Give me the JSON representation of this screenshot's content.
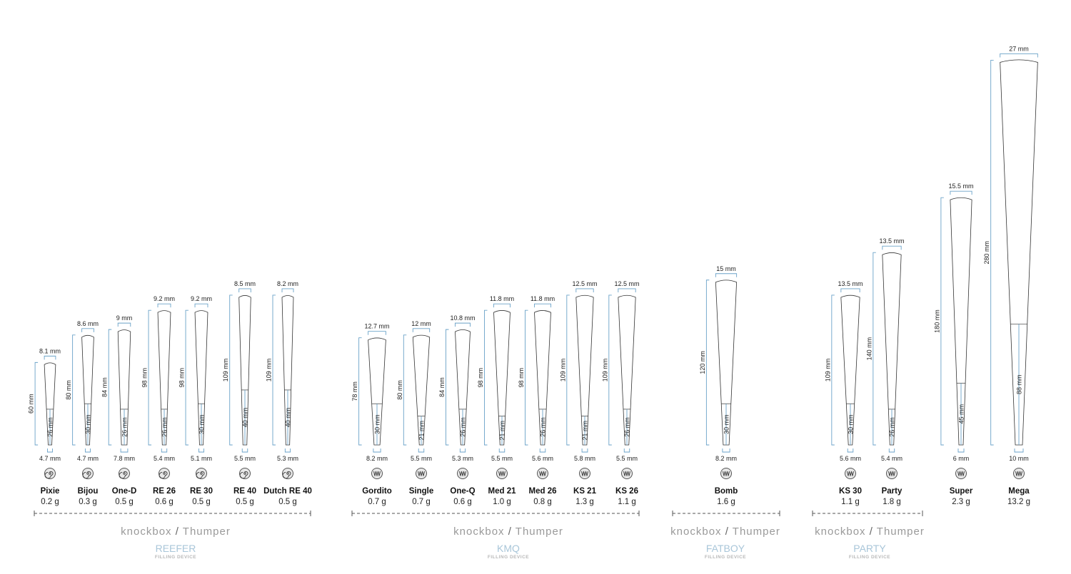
{
  "colors": {
    "dimension": "#6aa2c8",
    "outline": "#333333",
    "dashed": "#555555",
    "brand": "#9a9a9a",
    "group": "#a9c6d9",
    "icon": "#666666"
  },
  "unit": "mm",
  "groups": [
    {
      "brand": "knockbox",
      "separator": "/",
      "brand2": "Thumper",
      "group_name": "REEFER",
      "sub": "FILLING DEVICE",
      "cones": [
        {
          "name": "Pixie",
          "weight": "0.2 g",
          "length": 60,
          "filter": 26,
          "tip": "4.7 mm",
          "top": "8.1 mm",
          "length_label": "60 mm",
          "filter_label": "26 mm",
          "icon": "spiral-icon"
        },
        {
          "name": "Bijou",
          "weight": "0.3 g",
          "length": 80,
          "filter": 30,
          "tip": "4.7 mm",
          "top": "8.6 mm",
          "length_label": "80 mm",
          "filter_label": "30 mm",
          "icon": "spiral-icon"
        },
        {
          "name": "One-D",
          "weight": "0.5 g",
          "length": 84,
          "filter": 26,
          "tip": "7.8 mm",
          "top": "9 mm",
          "length_label": "84 mm",
          "filter_label": "26 mm",
          "icon": "spiral-icon"
        },
        {
          "name": "RE 26",
          "weight": "0.6 g",
          "length": 98,
          "filter": 26,
          "tip": "5.4 mm",
          "top": "9.2 mm",
          "length_label": "98 mm",
          "filter_label": "26 mm",
          "icon": "spiral-icon"
        },
        {
          "name": "RE 30",
          "weight": "0.5 g",
          "length": 98,
          "filter": 30,
          "tip": "5.1 mm",
          "top": "9.2 mm",
          "length_label": "98 mm",
          "filter_label": "30 mm",
          "icon": "spiral-icon"
        },
        {
          "name": "RE 40",
          "weight": "0.5 g",
          "length": 109,
          "filter": 40,
          "tip": "5.5 mm",
          "top": "8.5 mm",
          "length_label": "109 mm",
          "filter_label": "40 mm",
          "icon": "spiral-icon"
        },
        {
          "name": "Dutch RE 40",
          "weight": "0.5 g",
          "length": 109,
          "filter": 40,
          "tip": "5.3 mm",
          "top": "8.2 mm",
          "length_label": "109 mm",
          "filter_label": "40 mm",
          "icon": "spiral-icon"
        }
      ]
    },
    {
      "brand": "knockbox",
      "separator": "/",
      "brand2": "Thumper",
      "group_name": "KMQ",
      "sub": "FILLING DEVICE",
      "cones": [
        {
          "name": "Gordito",
          "weight": "0.7 g",
          "length": 78,
          "filter": 30,
          "tip": "8.2 mm",
          "top": "12.7 mm",
          "length_label": "78 mm",
          "filter_label": "30 mm",
          "icon": "zigzag-icon"
        },
        {
          "name": "Single",
          "weight": "0.7 g",
          "length": 80,
          "filter": 21,
          "tip": "5.5 mm",
          "top": "12 mm",
          "length_label": "80 mm",
          "filter_label": "21 mm",
          "icon": "zigzag-icon"
        },
        {
          "name": "One-Q",
          "weight": "0.6 g",
          "length": 84,
          "filter": 26,
          "tip": "5.3 mm",
          "top": "10.8 mm",
          "length_label": "84 mm",
          "filter_label": "26 mm",
          "icon": "zigzag-icon"
        },
        {
          "name": "Med 21",
          "weight": "1.0 g",
          "length": 98,
          "filter": 21,
          "tip": "5.5 mm",
          "top": "11.8 mm",
          "length_label": "98 mm",
          "filter_label": "21 mm",
          "icon": "zigzag-icon"
        },
        {
          "name": "Med 26",
          "weight": "0.8 g",
          "length": 98,
          "filter": 26,
          "tip": "5.6 mm",
          "top": "11.8 mm",
          "length_label": "98 mm",
          "filter_label": "26 mm",
          "icon": "zigzag-icon"
        },
        {
          "name": "KS 21",
          "weight": "1.3 g",
          "length": 109,
          "filter": 21,
          "tip": "5.8 mm",
          "top": "12.5 mm",
          "length_label": "109 mm",
          "filter_label": "21 mm",
          "icon": "zigzag-icon"
        },
        {
          "name": "KS 26",
          "weight": "1.1 g",
          "length": 109,
          "filter": 26,
          "tip": "5.5 mm",
          "top": "12.5 mm",
          "length_label": "109 mm",
          "filter_label": "26 mm",
          "icon": "zigzag-icon"
        }
      ]
    },
    {
      "brand": "knockbox",
      "separator": "/",
      "brand2": "Thumper",
      "group_name": "FATBOY",
      "sub": "FILLING DEVICE",
      "cones": [
        {
          "name": "Bomb",
          "weight": "1.6 g",
          "length": 120,
          "filter": 30,
          "tip": "8.2 mm",
          "top": "15 mm",
          "length_label": "120 mm",
          "filter_label": "30 mm",
          "icon": "zigzag-icon"
        }
      ]
    },
    {
      "brand": "knockbox",
      "separator": "/",
      "brand2": "Thumper",
      "group_name": "PARTY",
      "sub": "FILLING DEVICE",
      "cones": [
        {
          "name": "KS 30",
          "weight": "1.1 g",
          "length": 109,
          "filter": 30,
          "tip": "5.6 mm",
          "top": "13.5 mm",
          "length_label": "109 mm",
          "filter_label": "30 mm",
          "icon": "zigzag-icon"
        },
        {
          "name": "Party",
          "weight": "1.8 g",
          "length": 140,
          "filter": 26,
          "tip": "5.4 mm",
          "top": "13.5 mm",
          "length_label": "140 mm",
          "filter_label": "26 mm",
          "icon": "zigzag-icon"
        }
      ]
    },
    {
      "brand": "",
      "separator": "",
      "brand2": "",
      "group_name": "",
      "sub": "",
      "cones": [
        {
          "name": "Super",
          "weight": "2.3 g",
          "length": 180,
          "filter": 45,
          "tip": "6 mm",
          "top": "15.5 mm",
          "length_label": "180 mm",
          "filter_label": "45 mm",
          "icon": "zigzag-icon"
        },
        {
          "name": "Mega",
          "weight": "13.2 g",
          "length": 280,
          "filter": 88,
          "tip": "10 mm",
          "top": "27 mm",
          "length_label": "280 mm",
          "filter_label": "88 mm",
          "icon": "zigzag-icon"
        }
      ]
    }
  ]
}
